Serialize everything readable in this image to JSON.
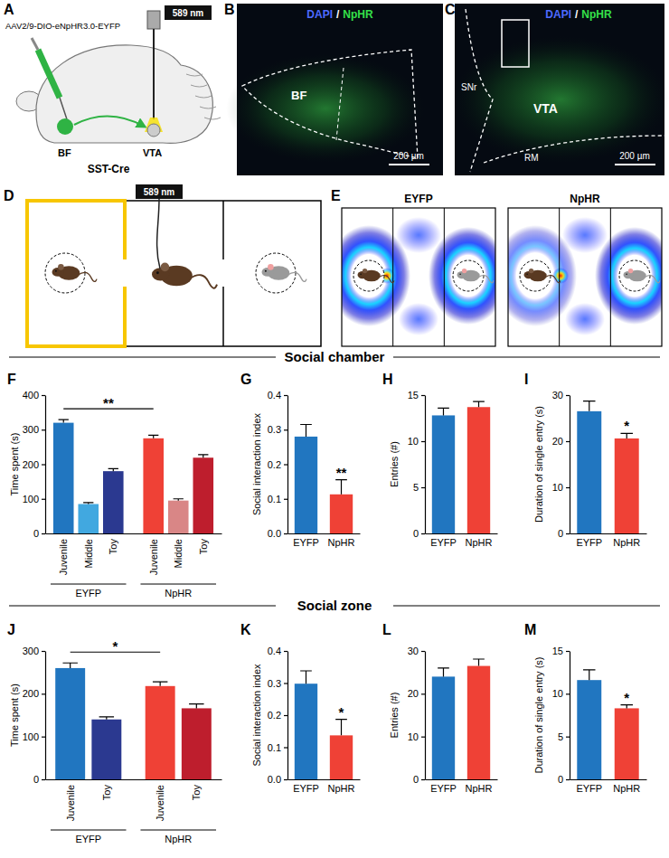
{
  "figure": {
    "panel_a": {
      "letter": "A",
      "laser": "589 nm",
      "virus": "AAV2/9-DIO-eNpHR3.0-EYFP",
      "source": "BF",
      "target": "VTA",
      "mouse_line": "SST-Cre"
    },
    "panel_b": {
      "letter": "B",
      "stain": [
        "DAPI",
        "/",
        "NpHR"
      ],
      "region": "BF",
      "scale_bar": "200 µm"
    },
    "panel_c": {
      "letter": "C",
      "stain": [
        "DAPI",
        "/",
        "NpHR"
      ],
      "regions": [
        "SNr",
        "VTA",
        "RM"
      ],
      "scale_bar": "200 µm"
    },
    "panel_d": {
      "letter": "D",
      "laser": "589 nm"
    },
    "panel_e": {
      "letter": "E",
      "groups": [
        "EYFP",
        "NpHR"
      ]
    },
    "sections": [
      "Social chamber",
      "Social zone"
    ]
  },
  "chart_data": [
    {
      "panel": "F",
      "type": "bar",
      "y_label": "Time spent (s)",
      "categories": [
        "Juvenile",
        "Middle",
        "Toy"
      ],
      "series": [
        {
          "name": "EYFP",
          "colors": [
            "#2176c0",
            "#41a8e0",
            "#2b3990"
          ],
          "values": [
            320,
            85,
            180
          ],
          "errors": [
            9,
            4,
            7
          ]
        },
        {
          "name": "NpHR",
          "colors": [
            "#ef4136",
            "#d98686",
            "#be1e2d"
          ],
          "values": [
            275,
            95,
            219
          ],
          "errors": [
            9,
            5,
            9
          ]
        }
      ],
      "ylim": [
        0,
        400
      ],
      "yticks": [
        0,
        100,
        200,
        300,
        400
      ],
      "annotations": [
        {
          "text": "**",
          "series": [
            0,
            1
          ],
          "category": 0
        }
      ]
    },
    {
      "panel": "G",
      "type": "bar",
      "y_label": "Social interaction index",
      "categories": [
        "EYFP",
        "NpHR"
      ],
      "colors": [
        "#2176c0",
        "#ef4136"
      ],
      "values": [
        0.28,
        0.113
      ],
      "errors": [
        0.035,
        0.042
      ],
      "ylim": [
        0,
        0.4
      ],
      "yticks": [
        {
          "value": 0,
          "label": "0.0"
        },
        0.1,
        0.2,
        0.3,
        0.4
      ],
      "annotations": [
        {
          "text": "**",
          "category": 1
        }
      ]
    },
    {
      "panel": "H",
      "type": "bar",
      "y_label": "Entries (#)",
      "categories": [
        "EYFP",
        "NpHR"
      ],
      "colors": [
        "#2176c0",
        "#ef4136"
      ],
      "values": [
        12.8,
        13.7
      ],
      "errors": [
        0.8,
        0.6
      ],
      "ylim": [
        0,
        15
      ],
      "yticks": [
        0,
        5,
        10,
        15
      ]
    },
    {
      "panel": "I",
      "type": "bar",
      "y_label": "Duration of single entry (s)",
      "categories": [
        "EYFP",
        "NpHR"
      ],
      "colors": [
        "#2176c0",
        "#ef4136"
      ],
      "values": [
        26.5,
        20.6
      ],
      "errors": [
        2.2,
        1.1
      ],
      "ylim": [
        0,
        30
      ],
      "yticks": [
        0,
        10,
        20,
        30
      ],
      "annotations": [
        {
          "text": "*",
          "category": 1
        }
      ]
    },
    {
      "panel": "J",
      "type": "bar",
      "y_label": "Time spent (s)",
      "categories": [
        "Juvenile",
        "Toy"
      ],
      "series": [
        {
          "name": "EYFP",
          "colors": [
            "#2176c0",
            "#2b3990"
          ],
          "values": [
            260,
            140
          ],
          "errors": [
            12,
            6
          ]
        },
        {
          "name": "NpHR",
          "colors": [
            "#ef4136",
            "#be1e2d"
          ],
          "values": [
            218,
            166
          ],
          "errors": [
            10,
            10
          ]
        }
      ],
      "ylim": [
        0,
        300
      ],
      "yticks": [
        0,
        100,
        200,
        300
      ],
      "annotations": [
        {
          "text": "*",
          "series": [
            0,
            1
          ],
          "category": 0
        }
      ]
    },
    {
      "panel": "K",
      "type": "bar",
      "y_label": "Social interaction index",
      "categories": [
        "EYFP",
        "NpHR"
      ],
      "colors": [
        "#2176c0",
        "#ef4136"
      ],
      "values": [
        0.298,
        0.137
      ],
      "errors": [
        0.04,
        0.05
      ],
      "ylim": [
        0,
        0.4
      ],
      "yticks": [
        {
          "value": 0,
          "label": "0.0"
        },
        0.1,
        0.2,
        0.3,
        0.4
      ],
      "annotations": [
        {
          "text": "*",
          "category": 1
        }
      ]
    },
    {
      "panel": "L",
      "type": "bar",
      "y_label": "Entries (#)",
      "categories": [
        "EYFP",
        "NpHR"
      ],
      "colors": [
        "#2176c0",
        "#ef4136"
      ],
      "values": [
        24,
        26.5
      ],
      "errors": [
        2,
        1.6
      ],
      "ylim": [
        0,
        30
      ],
      "yticks": [
        0,
        10,
        20,
        30
      ]
    },
    {
      "panel": "M",
      "type": "bar",
      "y_label": "Duration of single entry (s)",
      "categories": [
        "EYFP",
        "NpHR"
      ],
      "colors": [
        "#2176c0",
        "#ef4136"
      ],
      "values": [
        11.6,
        8.3
      ],
      "errors": [
        1.2,
        0.4
      ],
      "ylim": [
        0,
        15
      ],
      "yticks": [
        0,
        5,
        10,
        15
      ],
      "annotations": [
        {
          "text": "*",
          "category": 1
        }
      ]
    }
  ]
}
